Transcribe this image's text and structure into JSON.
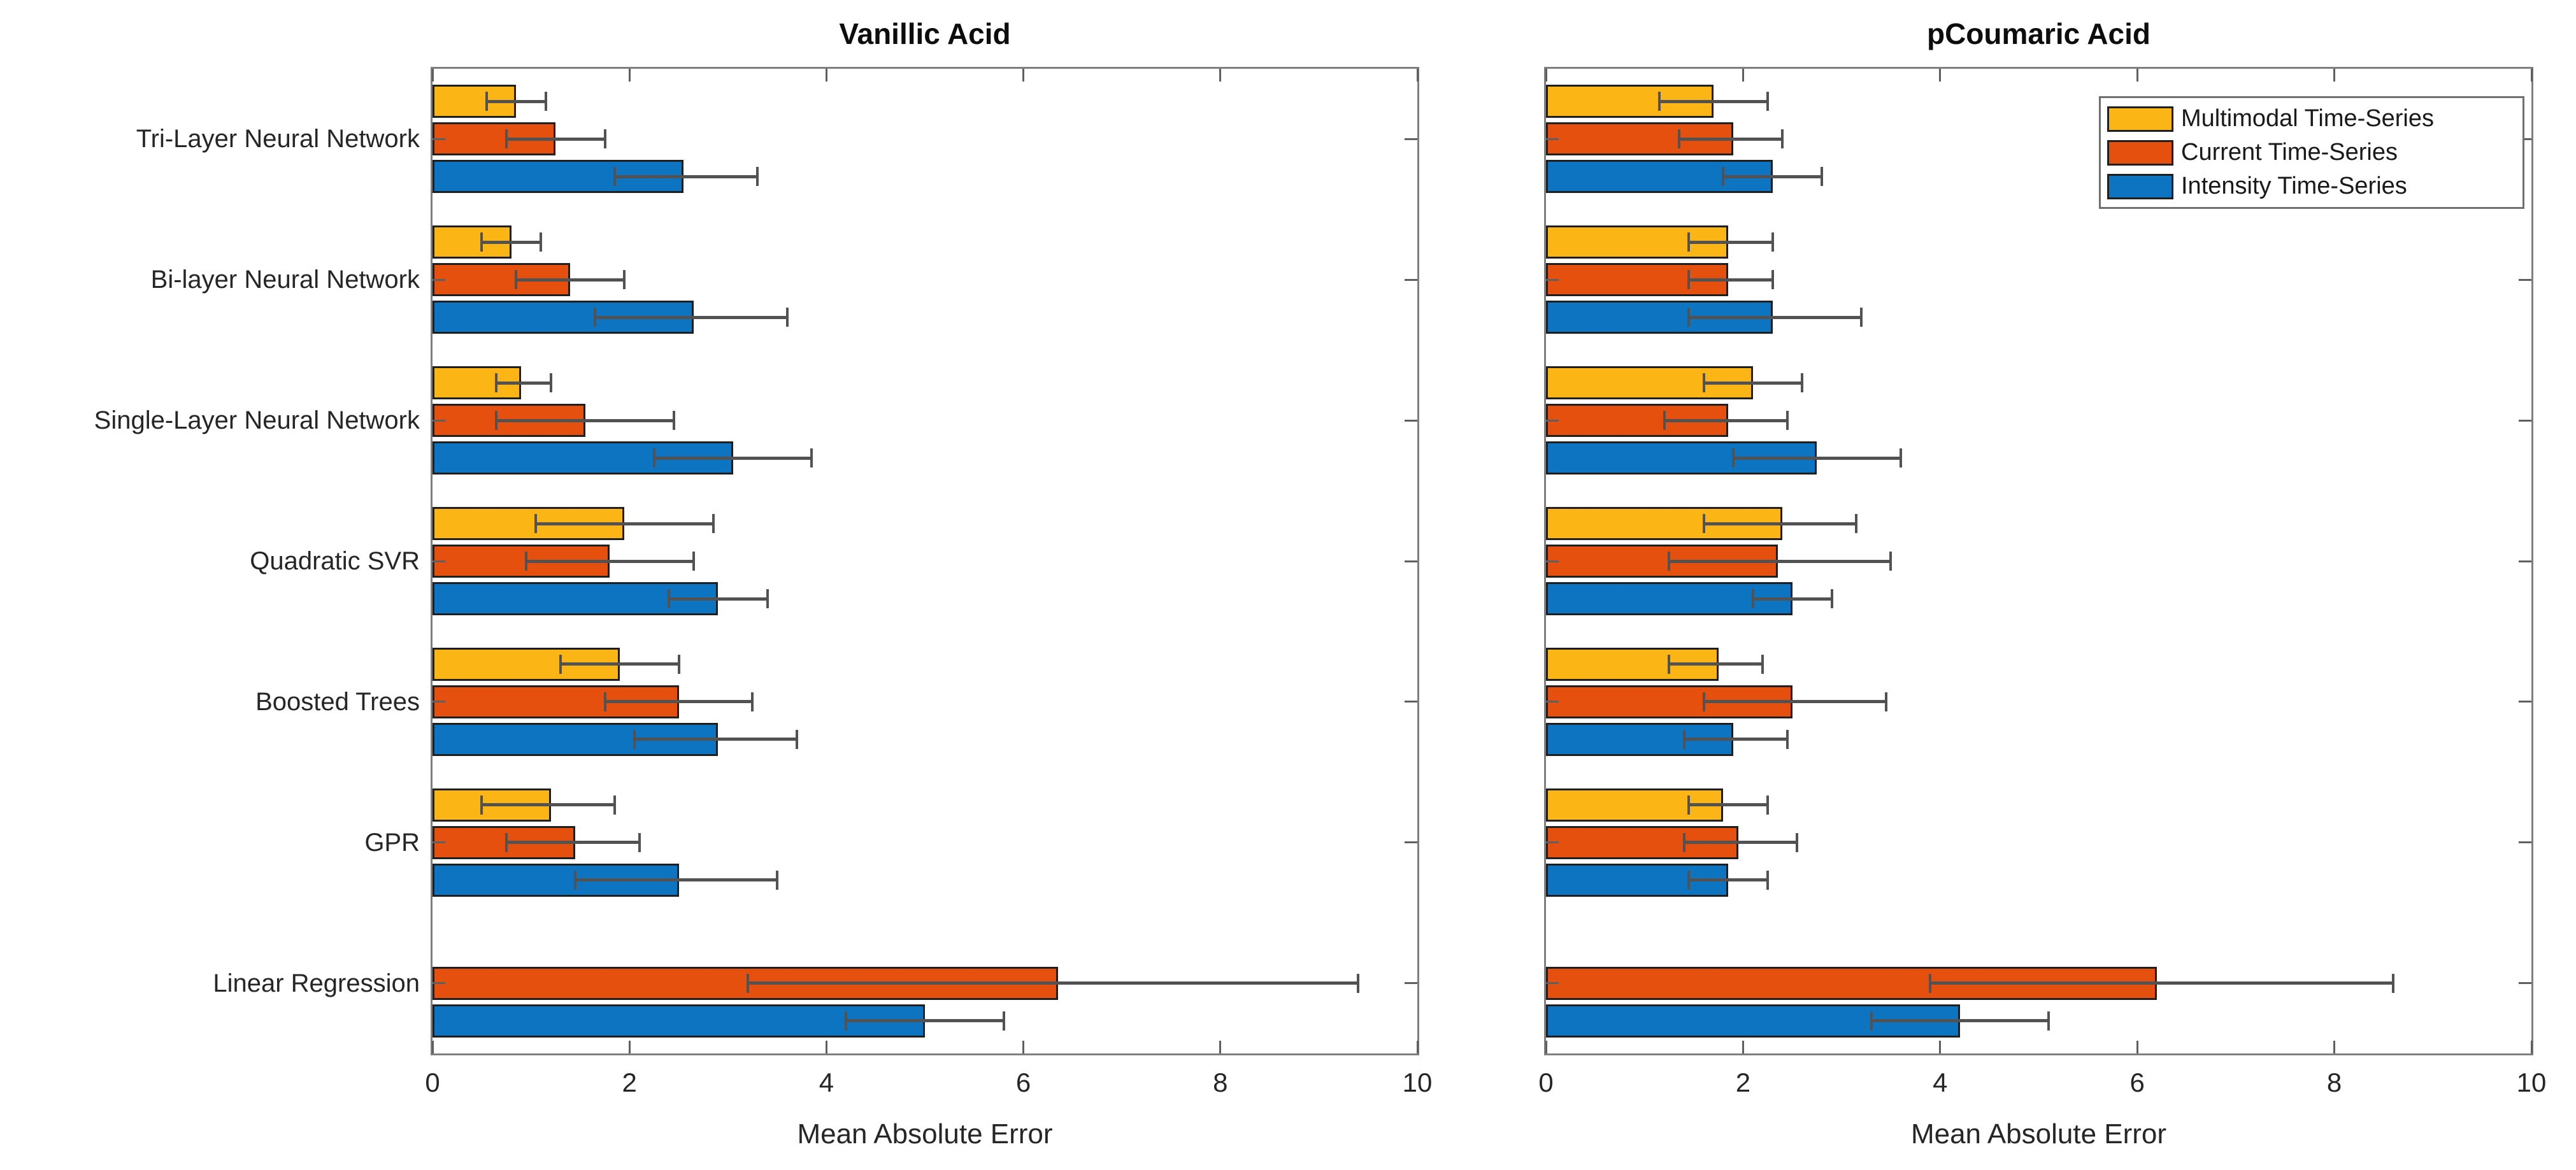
{
  "legend": {
    "position": "top-right-of-right-plot",
    "items": [
      {
        "label": "Multimodal Time-Series",
        "color": "#FBB515"
      },
      {
        "label": "Current Time-Series",
        "color": "#E6500F"
      },
      {
        "label": "Intensity Time-Series",
        "color": "#0C74C0"
      }
    ]
  },
  "chart_data": [
    {
      "type": "bar",
      "orientation": "horizontal-grouped",
      "title": "Vanillic Acid",
      "xlabel": "Mean Absolute Error",
      "ylabel": "",
      "xlim": [
        0,
        10
      ],
      "xticks": [
        0,
        2,
        4,
        6,
        8,
        10
      ],
      "grid": false,
      "error_bars": true,
      "categories": [
        "Tri-Layer Neural Network",
        "Bi-layer Neural Network",
        "Single-Layer Neural Network",
        "Quadratic SVR",
        "Boosted Trees",
        "GPR",
        "Linear Regression"
      ],
      "series": [
        {
          "name": "Multimodal Time-Series",
          "color": "#FBB515",
          "values": [
            0.85,
            0.8,
            0.9,
            1.95,
            1.9,
            1.2,
            null
          ],
          "err_low": [
            0.55,
            0.5,
            0.65,
            1.05,
            1.3,
            0.5,
            null
          ],
          "err_high": [
            1.15,
            1.1,
            1.2,
            2.85,
            2.5,
            1.85,
            null
          ]
        },
        {
          "name": "Current Time-Series",
          "color": "#E6500F",
          "values": [
            1.25,
            1.4,
            1.55,
            1.8,
            2.5,
            1.45,
            6.35
          ],
          "err_low": [
            0.75,
            0.85,
            0.65,
            0.95,
            1.75,
            0.75,
            3.2
          ],
          "err_high": [
            1.75,
            1.95,
            2.45,
            2.65,
            3.25,
            2.1,
            9.4
          ]
        },
        {
          "name": "Intensity Time-Series",
          "color": "#0C74C0",
          "values": [
            2.55,
            2.65,
            3.05,
            2.9,
            2.9,
            2.5,
            5.0
          ],
          "err_low": [
            1.85,
            1.65,
            2.25,
            2.4,
            2.05,
            1.45,
            4.2
          ],
          "err_high": [
            3.3,
            3.6,
            3.85,
            3.4,
            3.7,
            3.5,
            5.8
          ]
        }
      ]
    },
    {
      "type": "bar",
      "orientation": "horizontal-grouped",
      "title": "pCoumaric Acid",
      "xlabel": "Mean Absolute Error",
      "ylabel": "",
      "xlim": [
        0,
        10
      ],
      "xticks": [
        0,
        2,
        4,
        6,
        8,
        10
      ],
      "grid": false,
      "error_bars": true,
      "legend_position": "top-right-inside",
      "categories": [
        "Tri-Layer Neural Network",
        "Bi-layer Neural Network",
        "Single-Layer Neural Network",
        "Quadratic SVR",
        "Boosted Trees",
        "GPR",
        "Linear Regression"
      ],
      "series": [
        {
          "name": "Multimodal Time-Series",
          "color": "#FBB515",
          "values": [
            1.7,
            1.85,
            2.1,
            2.4,
            1.75,
            1.8,
            null
          ],
          "err_low": [
            1.15,
            1.45,
            1.6,
            1.6,
            1.25,
            1.45,
            null
          ],
          "err_high": [
            2.25,
            2.3,
            2.6,
            3.15,
            2.2,
            2.25,
            null
          ]
        },
        {
          "name": "Current Time-Series",
          "color": "#E6500F",
          "values": [
            1.9,
            1.85,
            1.85,
            2.35,
            2.5,
            1.95,
            6.2
          ],
          "err_low": [
            1.35,
            1.45,
            1.2,
            1.25,
            1.6,
            1.4,
            3.9
          ],
          "err_high": [
            2.4,
            2.3,
            2.45,
            3.5,
            3.45,
            2.55,
            8.6
          ]
        },
        {
          "name": "Intensity Time-Series",
          "color": "#0C74C0",
          "values": [
            2.3,
            2.3,
            2.75,
            2.5,
            1.9,
            1.85,
            4.2
          ],
          "err_low": [
            1.8,
            1.45,
            1.9,
            2.1,
            1.4,
            1.45,
            3.3
          ],
          "err_high": [
            2.8,
            3.2,
            3.6,
            2.9,
            2.45,
            2.25,
            5.1
          ]
        }
      ]
    }
  ]
}
